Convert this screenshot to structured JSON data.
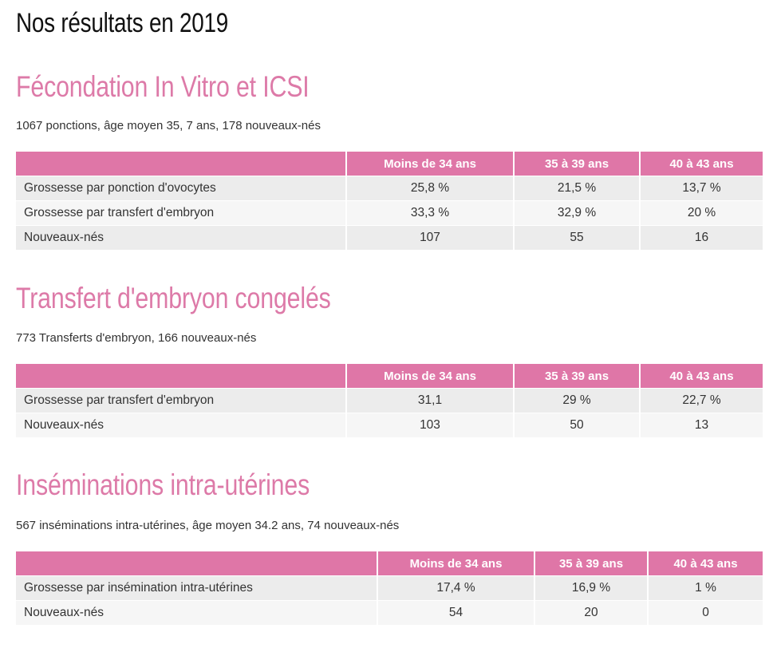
{
  "page_title": "Nos résultats en 2019",
  "colors": {
    "accent": "#df76a7",
    "title": "#dd7aa8"
  },
  "sections": [
    {
      "title": "Fécondation In Vitro et ICSI",
      "description": "1067 ponctions, âge moyen 35, 7 ans, 178 nouveaux-nés",
      "headers": [
        "",
        "Moins de 34 ans",
        "35 à 39 ans",
        "40 à 43 ans"
      ],
      "rows": [
        [
          "Grossesse par ponction d'ovocytes",
          "25,8 %",
          "21,5 %",
          "13,7 %"
        ],
        [
          "Grossesse par transfert d'embryon",
          "33,3 %",
          "32,9 %",
          "20 %"
        ],
        [
          "Nouveaux-nés",
          "107",
          "55",
          "16"
        ]
      ]
    },
    {
      "title": "Transfert d'embryon congelés",
      "description": "773 Transferts d'embryon, 166 nouveaux-nés",
      "headers": [
        "",
        "Moins de 34 ans",
        "35 à 39 ans",
        "40 à 43 ans"
      ],
      "rows": [
        [
          "Grossesse par transfert d'embryon",
          "31,1",
          "29 %",
          "22,7 %"
        ],
        [
          "Nouveaux-nés",
          "103",
          "50",
          "13"
        ]
      ]
    },
    {
      "title": "Inséminations intra-utérines",
      "description": "567 inséminations intra-utérines, âge moyen 34.2 ans, 74 nouveaux-nés",
      "headers": [
        "",
        "Moins de 34 ans",
        "35 à 39 ans",
        "40 à 43 ans"
      ],
      "rows": [
        [
          "Grossesse par insémination intra-utérines",
          "17,4 %",
          "16,9 %",
          "1 %"
        ],
        [
          "Nouveaux-nés",
          "54",
          "20",
          "0"
        ]
      ]
    }
  ]
}
